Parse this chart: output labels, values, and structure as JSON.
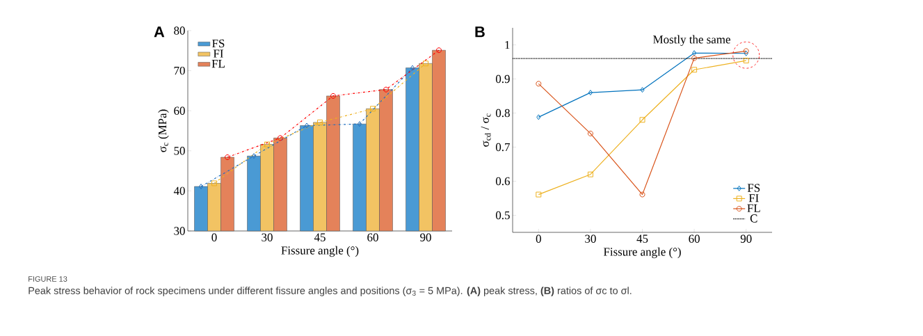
{
  "chart_data": [
    {
      "type": "bar",
      "title": "A",
      "categories": [
        "0",
        "30",
        "45",
        "60",
        "90"
      ],
      "xlabel": "Fissure angle (°)",
      "ylabel": "σ$_{c}$ (MPa)",
      "ylim": [
        30,
        80
      ],
      "yticks": [
        30,
        40,
        50,
        60,
        70,
        80
      ],
      "legend": "top left",
      "grid": false,
      "series": [
        {
          "name": "FS",
          "color": "#4a9ad4",
          "values": [
            41.1,
            48.7,
            56.3,
            56.7,
            70.7
          ]
        },
        {
          "name": "FI",
          "color": "#f2c363",
          "values": [
            41.9,
            51.6,
            57.1,
            60.5,
            71.8
          ]
        },
        {
          "name": "FL",
          "color": "#e4825a",
          "values": [
            48.4,
            53.2,
            63.7,
            65.3,
            75.1
          ]
        },
        {
          "type": "line",
          "color": "#1f6fc0",
          "x": [
            "0",
            "30",
            "45",
            "60",
            "90"
          ],
          "values": [
            41.1,
            48.7,
            56.3,
            56.7,
            70.7
          ],
          "marker": "diamond",
          "line_style": "dashed"
        },
        {
          "type": "line",
          "color": "#edb120",
          "x": [
            "0",
            "30",
            "45",
            "60",
            "90"
          ],
          "values": [
            41.9,
            51.6,
            57.1,
            60.5,
            71.8
          ],
          "marker": "square",
          "line_style": "dashed"
        },
        {
          "type": "line",
          "color": "#ff0000",
          "x": [
            "0",
            "30",
            "45",
            "60",
            "90"
          ],
          "values": [
            48.4,
            53.2,
            63.7,
            65.3,
            75.1
          ],
          "marker": "circle",
          "line_style": "dashed"
        }
      ]
    },
    {
      "type": "line",
      "title": "B",
      "categories": [
        "0",
        "30",
        "45",
        "60",
        "90"
      ],
      "xlabel": "Fissure angle (°)",
      "ylabel": "σ$_{cd}$ / σ$_{c}$",
      "ylim": [
        0.45,
        1.05
      ],
      "yticks": [
        0.5,
        0.6,
        0.7,
        0.8,
        0.9,
        {
          "value": 1,
          "label": "1"
        }
      ],
      "legend": "bottom right",
      "grid": false,
      "series": [
        {
          "name": "FS",
          "color": "#0072bd",
          "values": [
            0.788,
            0.86,
            0.868,
            0.976,
            0.975
          ],
          "marker": "diamond",
          "line_style": "solid"
        },
        {
          "name": "FI",
          "color": "#edb120",
          "values": [
            0.561,
            0.62,
            0.78,
            0.927,
            0.954
          ],
          "marker": "square",
          "line_style": "solid"
        },
        {
          "name": "FL",
          "color": "#d95319",
          "values": [
            0.886,
            0.74,
            0.561,
            0.961,
            0.982
          ],
          "marker": "circle",
          "line_style": "solid"
        }
      ],
      "ref_lines": [
        {
          "axis": "y",
          "value": 0.96,
          "label": "C",
          "color": "#000000",
          "line_style": "dotted"
        }
      ],
      "annotations": [
        {
          "text": "Mostly the same",
          "x": "90",
          "y": 0.97
        },
        "FIGURE 13",
        "Peak stress behavior of rock specimens under different fissure angles and positions (σ$_{3}$ = 5 MPa). **(A)** peak stress, **(B)** ratios of σc to σl."
      ]
    }
  ]
}
